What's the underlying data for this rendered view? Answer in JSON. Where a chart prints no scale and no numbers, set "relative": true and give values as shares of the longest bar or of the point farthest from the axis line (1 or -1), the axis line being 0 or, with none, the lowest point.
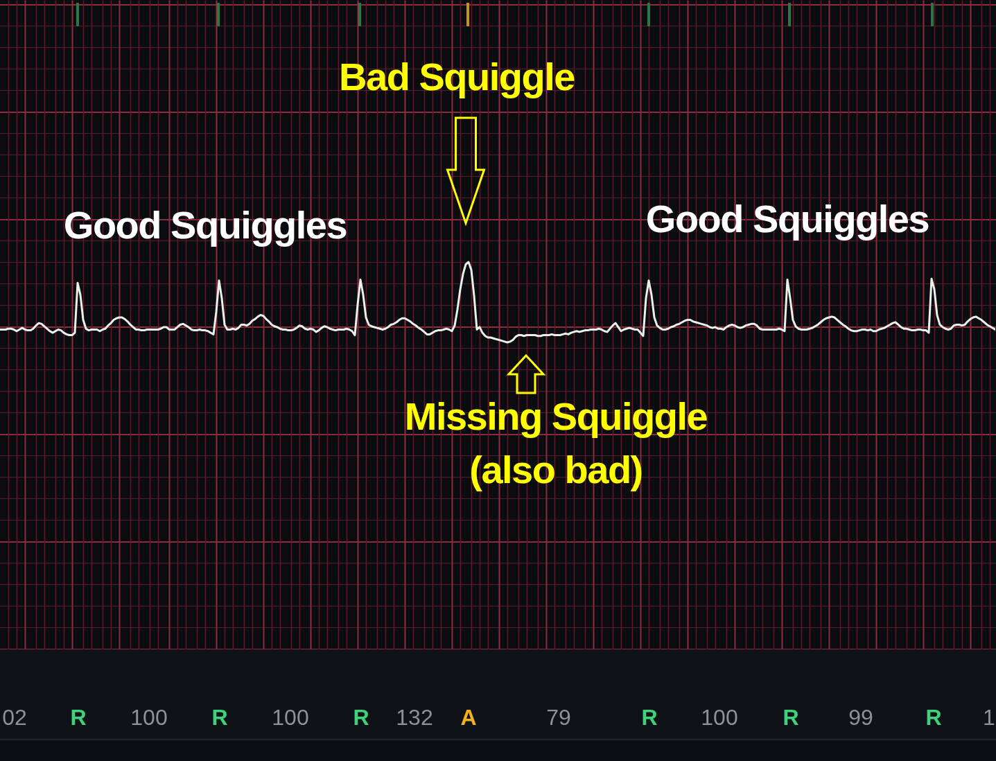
{
  "chart_data": {
    "type": "line",
    "relative": true,
    "grid": true,
    "color": "#eaf0ea",
    "categories": [
      null,
      null,
      null,
      null,
      null,
      null,
      null,
      null,
      null,
      null,
      null,
      null,
      null,
      null,
      null,
      null,
      null,
      null,
      null,
      null,
      null,
      null,
      null,
      null,
      null,
      null,
      null,
      null,
      null,
      null,
      null,
      null,
      null,
      null,
      null,
      null,
      null,
      null,
      null,
      null,
      null,
      null,
      null,
      null,
      null,
      null,
      null,
      null,
      null,
      null,
      null,
      null,
      null,
      null,
      null,
      null,
      null,
      null,
      null,
      null,
      null,
      null,
      null,
      null,
      null,
      null,
      null,
      null,
      null,
      null,
      null,
      null,
      null,
      null,
      null,
      null,
      null,
      null,
      null,
      null,
      null,
      null,
      null,
      null,
      null,
      null,
      null,
      null,
      null,
      null,
      null,
      null,
      null,
      null,
      null,
      null,
      null,
      null,
      null,
      null,
      null,
      null,
      null,
      null,
      null,
      null,
      null,
      null,
      null,
      null,
      null,
      null,
      null,
      null,
      null,
      null,
      null,
      null,
      null,
      null,
      null,
      null,
      null,
      null,
      null,
      null,
      null,
      null,
      null,
      null,
      null,
      null,
      null,
      null,
      null,
      null,
      null,
      null,
      null,
      null,
      null,
      null,
      null,
      null,
      null,
      null,
      null,
      null,
      null,
      null,
      null,
      null,
      null,
      null,
      null,
      null,
      null,
      null,
      null,
      null,
      null,
      null,
      null,
      null,
      null,
      null,
      null,
      null,
      null,
      null,
      null,
      null,
      null,
      null,
      null,
      null,
      null,
      null,
      null,
      null,
      null,
      null,
      null,
      null,
      null,
      null,
      null,
      null,
      null,
      null,
      null,
      null,
      null,
      null,
      null,
      null,
      null,
      null,
      null,
      null,
      null,
      null,
      null,
      null,
      null,
      null,
      null,
      null,
      null,
      null,
      null,
      null,
      null,
      null,
      null,
      null,
      null,
      null,
      null,
      null,
      null,
      null,
      null,
      null,
      null,
      null,
      null,
      null,
      null,
      null,
      null,
      null,
      null,
      null,
      null,
      null,
      null,
      null,
      null,
      null,
      null,
      null,
      null,
      null,
      null,
      null,
      null,
      null,
      null,
      null,
      null,
      null,
      null,
      null,
      null,
      null,
      null,
      null,
      null,
      null,
      null,
      null,
      null,
      null,
      null,
      null,
      null,
      null,
      null,
      null,
      null,
      null,
      null,
      null,
      null,
      null,
      null,
      null,
      null,
      null,
      null,
      null,
      null,
      null,
      null,
      null,
      null,
      null,
      null,
      null,
      null,
      null,
      null,
      null,
      null,
      null,
      null,
      null,
      null,
      null,
      null,
      null,
      null,
      null,
      null,
      null,
      null,
      null,
      null,
      null,
      null,
      null,
      null,
      null,
      null,
      null,
      null,
      null,
      null,
      null,
      null,
      null,
      null,
      null,
      null,
      null,
      null,
      null,
      null,
      null,
      null,
      null,
      null,
      null,
      null,
      null,
      null,
      null,
      null,
      null,
      null,
      null,
      null,
      null,
      null,
      null,
      null,
      null,
      null,
      null,
      null,
      null,
      null,
      null,
      null,
      null,
      null,
      null,
      null,
      null
    ],
    "values": [
      0.16,
      0.16,
      0.16,
      0.17,
      0.17,
      0.16,
      0.14,
      0.16,
      0.18,
      0.16,
      0.15,
      0.15,
      0.17,
      0.21,
      0.24,
      0.23,
      0.2,
      0.17,
      0.14,
      0.12,
      0.14,
      0.16,
      0.15,
      0.12,
      0.1,
      0.09,
      0.09,
      0.12,
      0.74,
      0.59,
      0.28,
      0.17,
      0.15,
      0.16,
      0.16,
      0.16,
      0.14,
      0.16,
      0.17,
      0.21,
      0.24,
      0.28,
      0.3,
      0.31,
      0.31,
      0.29,
      0.26,
      0.22,
      0.19,
      0.16,
      0.16,
      0.15,
      0.15,
      0.16,
      0.16,
      0.16,
      0.16,
      0.16,
      0.17,
      0.19,
      0.19,
      0.16,
      0.16,
      0.16,
      0.19,
      0.22,
      0.23,
      0.21,
      0.19,
      0.16,
      0.15,
      0.15,
      0.16,
      0.15,
      0.15,
      0.14,
      0.12,
      0.1,
      0.38,
      0.77,
      0.55,
      0.22,
      0.16,
      0.16,
      0.17,
      0.16,
      0.18,
      0.22,
      0.22,
      0.21,
      0.23,
      0.27,
      0.29,
      0.32,
      0.34,
      0.33,
      0.29,
      0.26,
      0.22,
      0.2,
      0.19,
      0.17,
      0.16,
      0.16,
      0.15,
      0.15,
      0.16,
      0.18,
      0.21,
      0.2,
      0.17,
      0.16,
      0.17,
      0.16,
      0.13,
      0.15,
      0.18,
      0.2,
      0.19,
      0.17,
      0.16,
      0.15,
      0.16,
      0.16,
      0.16,
      0.17,
      0.16,
      0.14,
      0.09,
      0.47,
      0.78,
      0.59,
      0.31,
      0.22,
      0.2,
      0.19,
      0.18,
      0.17,
      0.16,
      0.17,
      0.19,
      0.22,
      0.23,
      0.25,
      0.28,
      0.3,
      0.3,
      0.28,
      0.26,
      0.23,
      0.21,
      0.18,
      0.16,
      0.13,
      0.1,
      0.1,
      0.12,
      0.14,
      0.15,
      0.15,
      0.16,
      0.17,
      0.16,
      0.14,
      0.21,
      0.41,
      0.66,
      0.85,
      0.97,
      1.0,
      0.9,
      0.58,
      0.16,
      0.19,
      0.12,
      0.08,
      0.06,
      0.06,
      0.05,
      0.04,
      0.03,
      0.02,
      0.01,
      0.0,
      0.01,
      0.03,
      0.07,
      0.09,
      0.09,
      0.08,
      0.09,
      0.09,
      0.09,
      0.09,
      0.08,
      0.08,
      0.09,
      0.09,
      0.09,
      0.1,
      0.09,
      0.09,
      0.09,
      0.1,
      0.11,
      0.1,
      0.12,
      0.13,
      0.14,
      0.13,
      0.14,
      0.15,
      0.15,
      0.16,
      0.16,
      0.16,
      0.17,
      0.16,
      0.14,
      0.13,
      0.17,
      0.21,
      0.24,
      0.19,
      0.14,
      0.16,
      0.17,
      0.18,
      0.17,
      0.16,
      0.16,
      0.12,
      0.08,
      0.55,
      0.77,
      0.59,
      0.31,
      0.21,
      0.18,
      0.16,
      0.16,
      0.17,
      0.19,
      0.2,
      0.22,
      0.23,
      0.25,
      0.27,
      0.28,
      0.28,
      0.26,
      0.25,
      0.24,
      0.23,
      0.22,
      0.21,
      0.19,
      0.18,
      0.19,
      0.17,
      0.17,
      0.16,
      0.19,
      0.21,
      0.22,
      0.21,
      0.19,
      0.18,
      0.19,
      0.21,
      0.22,
      0.23,
      0.23,
      0.21,
      0.17,
      0.16,
      0.16,
      0.16,
      0.16,
      0.16,
      0.16,
      0.17,
      0.16,
      0.14,
      0.78,
      0.55,
      0.28,
      0.2,
      0.17,
      0.16,
      0.16,
      0.16,
      0.17,
      0.18,
      0.2,
      0.22,
      0.25,
      0.28,
      0.3,
      0.31,
      0.32,
      0.31,
      0.28,
      0.25,
      0.22,
      0.2,
      0.17,
      0.15,
      0.14,
      0.14,
      0.15,
      0.16,
      0.16,
      0.15,
      0.16,
      0.14,
      0.14,
      0.16,
      0.17,
      0.18,
      0.2,
      0.22,
      0.24,
      0.25,
      0.22,
      0.19,
      0.17,
      0.17,
      0.16,
      0.15,
      0.15,
      0.16,
      0.16,
      0.15,
      0.15,
      0.12,
      0.79,
      0.66,
      0.34,
      0.22,
      0.19,
      0.17,
      0.16,
      0.17,
      0.21,
      0.22,
      0.22,
      0.21,
      0.22,
      0.26,
      0.29,
      0.31,
      0.32,
      0.3,
      0.28,
      0.25,
      0.22,
      0.2,
      0.18,
      0.16
    ],
    "annotations": [
      "Bad Squiggle",
      "Good Squiggles",
      "Good Squiggles",
      "Missing Squiggle",
      "(also bad)",
      "02",
      "R",
      "100",
      "R",
      "100",
      "R",
      "132",
      "A",
      "79",
      "R",
      "100",
      "R",
      "99",
      "R",
      "1"
    ]
  }
}
